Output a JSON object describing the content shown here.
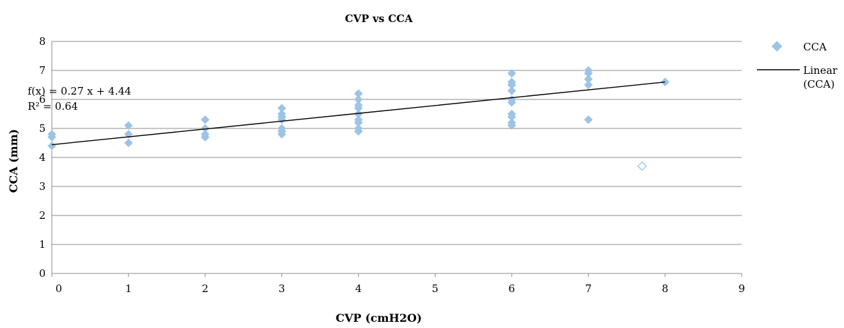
{
  "chart_data": {
    "type": "scatter",
    "title": "CVP vs CCA",
    "xlabel": "CVP (cmH2O)",
    "ylabel": "CCA (mm)",
    "xlim": [
      0,
      9
    ],
    "ylim": [
      0,
      8
    ],
    "xticks": [
      "0",
      "1",
      "2",
      "3",
      "4",
      "5",
      "6",
      "7",
      "8",
      "9"
    ],
    "yticks": [
      "0",
      "1",
      "2",
      "3",
      "4",
      "5",
      "6",
      "7",
      "8"
    ],
    "grid": "horizontal",
    "legend_position": "right",
    "series": [
      {
        "name": "CCA",
        "color": "#9dc3e6",
        "marker": "diamond",
        "points": [
          {
            "x": 0,
            "y": 4.7
          },
          {
            "x": 0,
            "y": 4.8
          },
          {
            "x": 0,
            "y": 4.4
          },
          {
            "x": 1,
            "y": 5.1
          },
          {
            "x": 1,
            "y": 4.8
          },
          {
            "x": 1,
            "y": 4.5
          },
          {
            "x": 2,
            "y": 5.3
          },
          {
            "x": 2,
            "y": 5.0
          },
          {
            "x": 2,
            "y": 4.8
          },
          {
            "x": 2,
            "y": 4.7
          },
          {
            "x": 3,
            "y": 5.7
          },
          {
            "x": 3,
            "y": 5.5
          },
          {
            "x": 3,
            "y": 5.4
          },
          {
            "x": 3,
            "y": 5.3
          },
          {
            "x": 3,
            "y": 5.0
          },
          {
            "x": 3,
            "y": 4.9
          },
          {
            "x": 3,
            "y": 4.8
          },
          {
            "x": 4,
            "y": 6.2
          },
          {
            "x": 4,
            "y": 6.0
          },
          {
            "x": 4,
            "y": 5.8
          },
          {
            "x": 4,
            "y": 5.7
          },
          {
            "x": 4,
            "y": 5.5
          },
          {
            "x": 4,
            "y": 5.3
          },
          {
            "x": 4,
            "y": 5.2
          },
          {
            "x": 4,
            "y": 5.0
          },
          {
            "x": 4,
            "y": 4.9
          },
          {
            "x": 6,
            "y": 6.9
          },
          {
            "x": 6,
            "y": 6.6
          },
          {
            "x": 6,
            "y": 6.5
          },
          {
            "x": 6,
            "y": 6.3
          },
          {
            "x": 6,
            "y": 6.0
          },
          {
            "x": 6,
            "y": 5.9
          },
          {
            "x": 6,
            "y": 5.5
          },
          {
            "x": 6,
            "y": 5.4
          },
          {
            "x": 6,
            "y": 5.2
          },
          {
            "x": 6,
            "y": 5.1
          },
          {
            "x": 7,
            "y": 7.0
          },
          {
            "x": 7,
            "y": 6.9
          },
          {
            "x": 7,
            "y": 6.7
          },
          {
            "x": 7,
            "y": 6.5
          },
          {
            "x": 7,
            "y": 5.3
          },
          {
            "x": 8,
            "y": 6.6
          }
        ]
      }
    ],
    "outlier": {
      "x": 7.7,
      "y": 3.7,
      "color": "#9dc3e6",
      "marker": "diamond-open"
    },
    "trendline": {
      "name": "Linear (CCA)",
      "color": "#000000",
      "slope": 0.27,
      "intercept": 4.44,
      "x_range": [
        0,
        8
      ],
      "equation": "f(x) = 0.27 x + 4.44",
      "r2": "R² = 0.64"
    },
    "legend": [
      {
        "label": "CCA",
        "marker": "diamond"
      },
      {
        "label": "Linear\n(CCA)",
        "marker": "line"
      }
    ]
  }
}
